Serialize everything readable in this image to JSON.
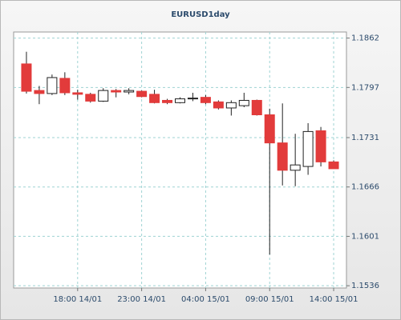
{
  "chart_data": {
    "type": "candlestick",
    "title": "EURUSD1day",
    "categories": [
      null,
      null,
      null,
      null,
      "18:00 14/01",
      null,
      null,
      null,
      null,
      "23:00 14/01",
      null,
      null,
      null,
      null,
      "04:00 15/01",
      null,
      null,
      null,
      null,
      "09:00 15/01",
      null,
      null,
      null,
      null,
      "14:00 15/01"
    ],
    "open": [
      1.1828,
      1.1793,
      1.1789,
      1.1809,
      1.179,
      1.1788,
      1.1779,
      1.1793,
      1.1791,
      1.1792,
      1.1788,
      1.178,
      1.1777,
      1.1782,
      1.1784,
      1.1778,
      1.177,
      1.1773,
      1.178,
      1.1761,
      1.1724,
      1.1688,
      1.1693,
      1.174,
      1.1699
    ],
    "high": [
      1.1844,
      1.1799,
      1.1814,
      1.1817,
      1.1794,
      1.179,
      1.1796,
      1.1795,
      1.1796,
      1.1793,
      1.1794,
      1.1782,
      1.1784,
      1.179,
      1.1787,
      1.178,
      1.178,
      1.179,
      1.1781,
      1.1769,
      1.1776,
      1.1736,
      1.175,
      1.1745,
      1.1701
    ],
    "low": [
      1.1789,
      1.1775,
      1.1787,
      1.1787,
      1.1781,
      1.1777,
      1.1778,
      1.1784,
      1.1788,
      1.1784,
      1.1776,
      1.1775,
      1.1776,
      1.1779,
      1.1775,
      1.1768,
      1.176,
      1.1771,
      1.176,
      1.1577,
      1.1668,
      1.1667,
      1.1682,
      1.1693,
      1.169
    ],
    "close": [
      1.1792,
      1.1789,
      1.181,
      1.179,
      1.1788,
      1.1779,
      1.1793,
      1.1791,
      1.1793,
      1.1785,
      1.1777,
      1.1777,
      1.1782,
      1.1783,
      1.1777,
      1.177,
      1.1777,
      1.178,
      1.1761,
      1.1724,
      1.1688,
      1.1695,
      1.1739,
      1.1699,
      1.169
    ],
    "up_color": "#ffffff",
    "down_color": "#e23b3b",
    "ylim": [
      1.1533,
      1.187
    ],
    "yticks": [
      1.1536,
      1.1601,
      1.1666,
      1.1731,
      1.1797,
      1.1862
    ],
    "grid": true
  }
}
